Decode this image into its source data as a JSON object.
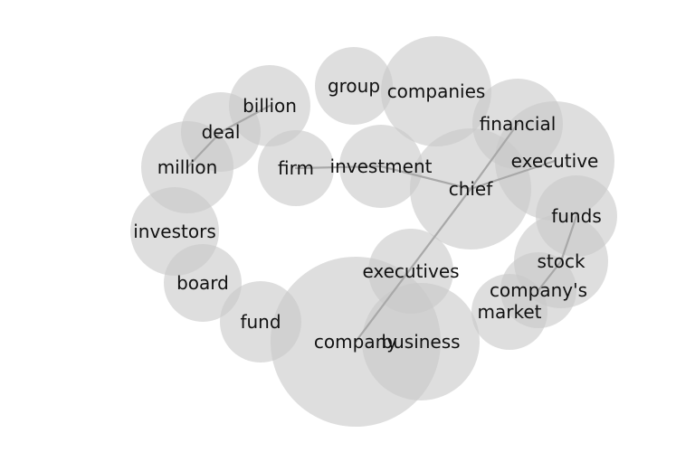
{
  "colors": {
    "bubble": "#c8c8c8",
    "link": "#a8a8a8",
    "text": "#111111",
    "background": "#ffffff"
  },
  "nodes": [
    {
      "id": "group",
      "label": "group"
    },
    {
      "id": "companies",
      "label": "companies"
    },
    {
      "id": "billion",
      "label": "billion"
    },
    {
      "id": "deal",
      "label": "deal"
    },
    {
      "id": "financial",
      "label": "financial"
    },
    {
      "id": "million",
      "label": "million"
    },
    {
      "id": "firm",
      "label": "firm"
    },
    {
      "id": "investment",
      "label": "investment"
    },
    {
      "id": "executive",
      "label": "executive"
    },
    {
      "id": "chief",
      "label": "chief"
    },
    {
      "id": "funds",
      "label": "funds"
    },
    {
      "id": "investors",
      "label": "investors"
    },
    {
      "id": "stock",
      "label": "stock"
    },
    {
      "id": "executives",
      "label": "executives"
    },
    {
      "id": "board",
      "label": "board"
    },
    {
      "id": "companys",
      "label": "company's"
    },
    {
      "id": "market",
      "label": "market"
    },
    {
      "id": "fund",
      "label": "fund"
    },
    {
      "id": "company",
      "label": "company"
    },
    {
      "id": "business",
      "label": "business"
    }
  ],
  "edges": [
    [
      "billion",
      "deal"
    ],
    [
      "deal",
      "million"
    ],
    [
      "firm",
      "investment"
    ],
    [
      "investment",
      "chief"
    ],
    [
      "chief",
      "executive"
    ],
    [
      "chief",
      "financial"
    ],
    [
      "chief",
      "company"
    ],
    [
      "funds",
      "stock"
    ],
    [
      "stock",
      "companys"
    ]
  ]
}
